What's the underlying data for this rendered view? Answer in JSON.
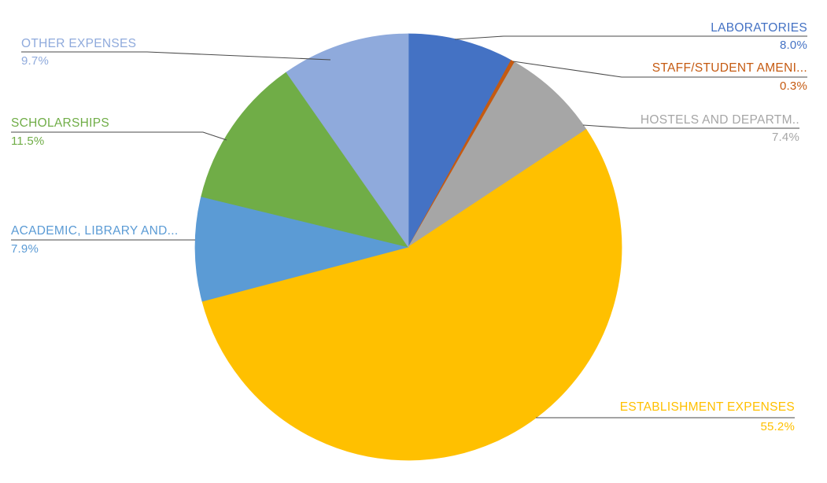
{
  "chart_data": {
    "type": "pie",
    "title": "",
    "values_unit": "%",
    "start_angle_deg": 0,
    "direction": "clockwise",
    "legend_position": "none",
    "label_style": "callout labels with leader lines, category name above line and percentage below",
    "background_color": "#FFFFFF",
    "leader_line_color": "#4A4A4A",
    "slices": [
      {
        "label": "LABORATORIES",
        "value": 8.0,
        "pct_label": "8.0%",
        "color": "#4472C4"
      },
      {
        "label": "STAFF/STUDENT AMENI...",
        "value": 0.3,
        "pct_label": "0.3%",
        "color": "#C55A11"
      },
      {
        "label": "HOSTELS AND DEPARTM..",
        "value": 7.4,
        "pct_label": "7.4%",
        "color": "#A6A6A6"
      },
      {
        "label": "ESTABLISHMENT EXPENSES",
        "value": 55.2,
        "pct_label": "55.2%",
        "color": "#FFC000"
      },
      {
        "label": "ACADEMIC, LIBRARY AND...",
        "value": 7.9,
        "pct_label": "7.9%",
        "color": "#5B9BD5"
      },
      {
        "label": "SCHOLARSHIPS",
        "value": 11.5,
        "pct_label": "11.5%",
        "color": "#70AD47"
      },
      {
        "label": "OTHER EXPENSES",
        "value": 9.7,
        "pct_label": "9.7%",
        "color": "#8FAADC"
      }
    ]
  }
}
